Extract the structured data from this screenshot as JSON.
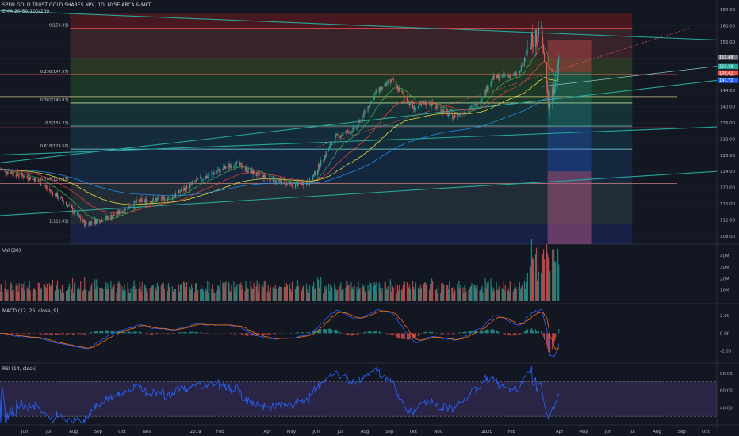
{
  "header": {
    "symbol_line": "SPDR GOLD TRUST GOLD SHARES NPV, 1D, NYSE ARCA & MKT",
    "ema_line": "EMA 20/50/100/200"
  },
  "panes": {
    "vol_label": "Vol (20)",
    "macd_label": "MACD (12, 26, close, 9)",
    "rsi_label": "RSI (14, close)"
  },
  "colors": {
    "background": "#131722",
    "grid": "#1e2230",
    "axis_text": "#b2b5be",
    "up": "#26a69a",
    "down": "#ef5350",
    "trendline": "#26a69a",
    "macd_line": "#2962ff",
    "signal_line": "#ff6d00",
    "rsi_line": "#2962ff",
    "rsi_band": "#7e57c2",
    "ema": [
      "#4caf50",
      "#f44336",
      "#ffeb3b",
      "#2196f3"
    ]
  },
  "chart_data": [
    {
      "type": "candlestick",
      "title": "SPDR GOLD TRUST GOLD SHARES NPV, 1D, NYSE ARCA & MKT",
      "ylim": [
        106,
        166
      ],
      "y_ticks": [
        108.0,
        112.0,
        116.0,
        120.0,
        124.0,
        128.0,
        132.0,
        136.0,
        140.0,
        144.0,
        148.0,
        152.0,
        156.0,
        160.0,
        164.0
      ],
      "x_ticks": [
        "Jun",
        "Jul",
        "Aug",
        "Sep",
        "Oct",
        "Nov",
        "2019",
        "Feb",
        "Apr",
        "May",
        "Jun",
        "Jul",
        "Aug",
        "Sep",
        "Oct",
        "Nov",
        "2020",
        "Feb",
        "Apr",
        "May",
        "Jun",
        "Jul",
        "Aug",
        "Sep",
        "Oct"
      ],
      "price_anchors": [
        {
          "date": "2018-05-01",
          "price": 124.5
        },
        {
          "date": "2018-06-15",
          "price": 122.0
        },
        {
          "date": "2018-07-20",
          "price": 116.5
        },
        {
          "date": "2018-08-16",
          "price": 111.0
        },
        {
          "date": "2018-09-20",
          "price": 113.0
        },
        {
          "date": "2018-10-20",
          "price": 116.5
        },
        {
          "date": "2018-12-01",
          "price": 117.5
        },
        {
          "date": "2019-01-01",
          "price": 121.5
        },
        {
          "date": "2019-02-20",
          "price": 126.0
        },
        {
          "date": "2019-03-20",
          "price": 123.0
        },
        {
          "date": "2019-05-01",
          "price": 120.5
        },
        {
          "date": "2019-05-25",
          "price": 121.5
        },
        {
          "date": "2019-06-25",
          "price": 132.5
        },
        {
          "date": "2019-07-20",
          "price": 134.5
        },
        {
          "date": "2019-08-15",
          "price": 143.5
        },
        {
          "date": "2019-09-04",
          "price": 146.5
        },
        {
          "date": "2019-10-01",
          "price": 139.5
        },
        {
          "date": "2019-10-20",
          "price": 141.0
        },
        {
          "date": "2019-11-20",
          "price": 137.5
        },
        {
          "date": "2019-12-20",
          "price": 140.5
        },
        {
          "date": "2020-01-08",
          "price": 147.0
        },
        {
          "date": "2020-02-10",
          "price": 148.0
        },
        {
          "date": "2020-02-24",
          "price": 155.5
        },
        {
          "date": "2020-03-09",
          "price": 158.5
        },
        {
          "date": "2020-03-19",
          "price": 139.5
        },
        {
          "date": "2020-03-31",
          "price": 150.5
        }
      ],
      "ema_periods": [
        20,
        50,
        100,
        200
      ],
      "fibonacci": [
        {
          "label": "0(159.39)",
          "price": 159.39
        },
        {
          "label": "0.236(147.97)",
          "price": 147.97
        },
        {
          "label": "0.382(140.91)",
          "price": 140.91
        },
        {
          "label": "0.5(135.21)",
          "price": 135.21
        },
        {
          "label": "0.618(129.50)",
          "price": 129.5
        },
        {
          "label": "0.786(121.37)",
          "price": 121.37
        },
        {
          "label": "1(111.02)",
          "price": 111.02
        }
      ],
      "current_price_labels": [
        "151.48",
        "150.38",
        "148.42",
        "147.72"
      ]
    },
    {
      "type": "bar",
      "title": "Vol (20)",
      "y_ticks": [
        "40M",
        "30M",
        "20M",
        "10M"
      ],
      "ylim": [
        0,
        44
      ]
    },
    {
      "type": "line",
      "title": "MACD (12, 26, close, 9)",
      "y_ticks": [
        2.0,
        0.0,
        -2.0
      ],
      "ylim": [
        -3.2,
        3.0
      ]
    },
    {
      "type": "line",
      "title": "RSI (14, close)",
      "y_ticks": [
        80.0,
        60.0,
        40.0
      ],
      "ylim": [
        20,
        90
      ],
      "bands": [
        70,
        30
      ]
    }
  ]
}
